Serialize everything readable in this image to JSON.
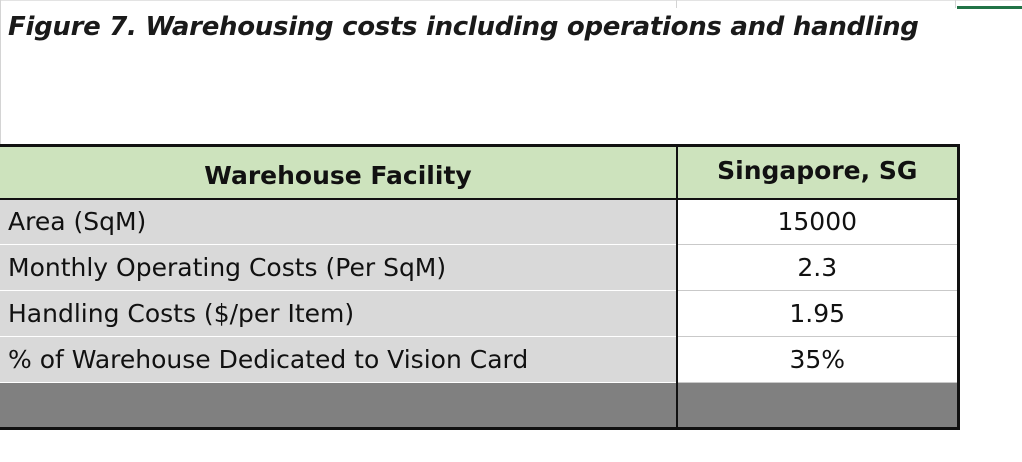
{
  "figure": {
    "title": "Figure 7. Warehousing costs including operations and handling"
  },
  "table": {
    "headers": [
      "Warehouse Facility",
      "Singapore, SG"
    ],
    "rows": [
      {
        "label": "Area (SqM)",
        "value": "15000"
      },
      {
        "label": "Monthly Operating Costs (Per SqM)",
        "value": "2.3"
      },
      {
        "label": "Handling Costs ($/per Item)",
        "value": "1.95"
      },
      {
        "label": "% of Warehouse Dedicated to Vision Card",
        "value": "35%"
      }
    ]
  },
  "colors": {
    "header_bg": "#cde3bd",
    "label_bg": "#d9d9d9",
    "footer_bg": "#808080",
    "border": "#111111"
  }
}
